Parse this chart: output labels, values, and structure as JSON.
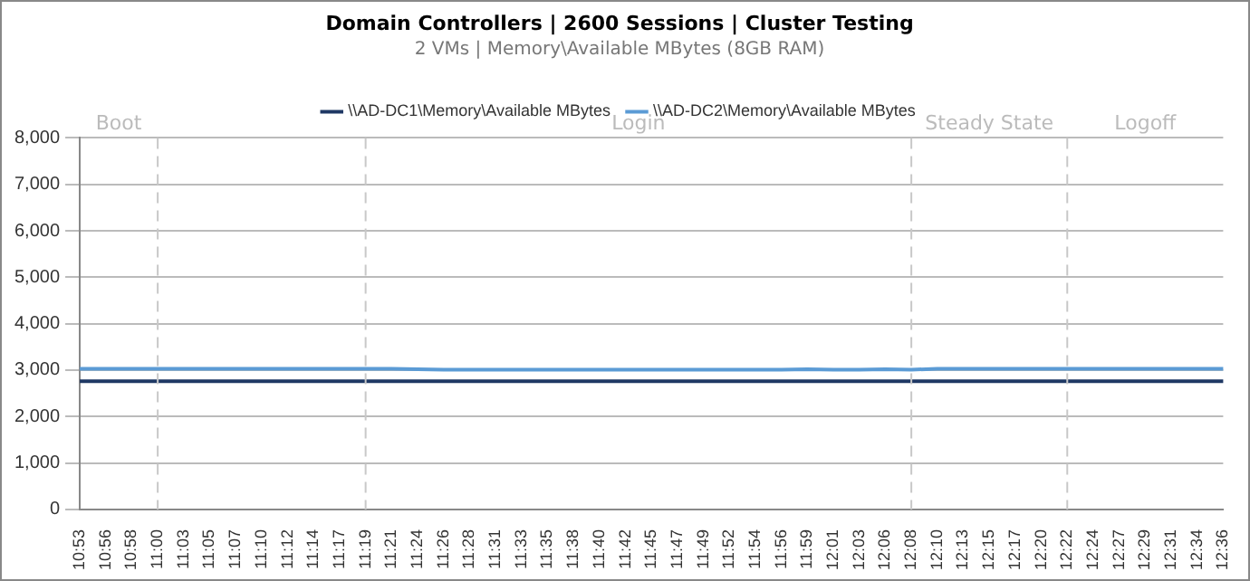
{
  "chart_data": {
    "type": "line",
    "title": "Domain Controllers | 2600 Sessions | Cluster Testing",
    "subtitle": "2 VMs | Memory\\Available MBytes (8GB RAM)",
    "categories": [
      "10:53",
      "10:56",
      "10:58",
      "11:00",
      "11:03",
      "11:05",
      "11:07",
      "11:10",
      "11:12",
      "11:14",
      "11:17",
      "11:19",
      "11:21",
      "11:24",
      "11:26",
      "11:28",
      "11:31",
      "11:33",
      "11:35",
      "11:38",
      "11:40",
      "11:42",
      "11:45",
      "11:47",
      "11:49",
      "11:52",
      "11:54",
      "11:56",
      "11:59",
      "12:01",
      "12:03",
      "12:06",
      "12:08",
      "12:10",
      "12:13",
      "12:15",
      "12:17",
      "12:20",
      "12:22",
      "12:24",
      "12:27",
      "12:29",
      "12:31",
      "12:34",
      "12:36"
    ],
    "series": [
      {
        "name": "\\\\AD-DC1\\Memory\\Available MBytes",
        "color": "#1f3864",
        "values": [
          2760,
          2760,
          2760,
          2760,
          2760,
          2760,
          2760,
          2760,
          2760,
          2760,
          2760,
          2760,
          2760,
          2760,
          2760,
          2760,
          2760,
          2760,
          2760,
          2760,
          2760,
          2760,
          2760,
          2760,
          2760,
          2760,
          2760,
          2760,
          2760,
          2760,
          2760,
          2760,
          2760,
          2760,
          2760,
          2760,
          2760,
          2760,
          2760,
          2760,
          2760,
          2760,
          2760,
          2760,
          2760
        ]
      },
      {
        "name": "\\\\AD-DC2\\Memory\\Available MBytes",
        "color": "#5b9bd5",
        "values": [
          3030,
          3030,
          3030,
          3030,
          3030,
          3030,
          3030,
          3030,
          3030,
          3030,
          3030,
          3030,
          3030,
          3020,
          3010,
          3010,
          3010,
          3010,
          3010,
          3010,
          3010,
          3010,
          3010,
          3010,
          3010,
          3010,
          3010,
          3010,
          3020,
          3010,
          3010,
          3020,
          3010,
          3030,
          3030,
          3030,
          3030,
          3030,
          3030,
          3030,
          3030,
          3030,
          3030,
          3030,
          3030
        ]
      }
    ],
    "ylim": [
      0,
      8000
    ],
    "yticks": [
      {
        "value": 0,
        "label": "0"
      },
      {
        "value": 1000,
        "label": "1,000"
      },
      {
        "value": 2000,
        "label": "2,000"
      },
      {
        "value": 3000,
        "label": "3,000"
      },
      {
        "value": 4000,
        "label": "4,000"
      },
      {
        "value": 5000,
        "label": "5,000"
      },
      {
        "value": 6000,
        "label": "6,000"
      },
      {
        "value": 7000,
        "label": "7,000"
      },
      {
        "value": 8000,
        "label": "8,000"
      }
    ],
    "grid": "y",
    "legend": "top",
    "marker": "none",
    "line_style": "solid",
    "ref_lines": [
      {
        "axis": "x",
        "value": "11:00",
        "label": "Boot",
        "line_style": "dashed",
        "color": "#c8c8c8"
      },
      {
        "axis": "x",
        "value": "11:19",
        "line_style": "dashed",
        "color": "#c8c8c8"
      },
      {
        "axis": "x",
        "value": "12:08",
        "line_style": "dashed",
        "color": "#c8c8c8"
      },
      {
        "axis": "x",
        "value": "12:22",
        "label": "Steady State",
        "line_style": "dashed",
        "color": "#c8c8c8"
      }
    ],
    "annotations": [
      "Login",
      "Logoff"
    ]
  }
}
